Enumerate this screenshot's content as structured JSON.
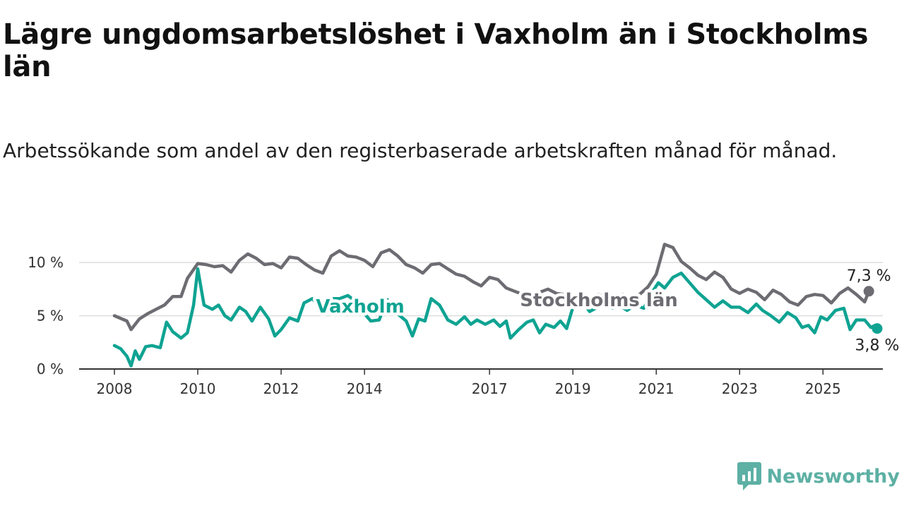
{
  "title": "Lägre ungdomsarbetslöshet i Vaxholm än i Stockholms län",
  "subtitle": "Arbetssökande som andel av den registerbaserade arbetskraften månad för månad.",
  "brand": {
    "name": "Newsworthy"
  },
  "chart_data": {
    "type": "line",
    "y_ticks": [
      0,
      5,
      10
    ],
    "y_tick_labels": [
      "0 %",
      "5 %",
      "10 %"
    ],
    "x_ticks": [
      2008,
      2010,
      2012,
      2014,
      2017,
      2019,
      2021,
      2023,
      2025
    ],
    "x_tick_labels": [
      "2008",
      "2010",
      "2012",
      "2014",
      "2017",
      "2019",
      "2021",
      "2023",
      "2025"
    ],
    "xlim": [
      2008,
      2026.3
    ],
    "ylim": [
      0,
      10
    ],
    "grid": true,
    "colors": {
      "Stockholms län": "#6d6c72",
      "Vaxholm": "#0fa392",
      "grid": "#dddddd",
      "axis": "#333333"
    },
    "series": [
      {
        "name": "Stockholms län",
        "end_label": "7,3 %",
        "points": [
          [
            2008.0,
            5.0
          ],
          [
            2008.3,
            4.5
          ],
          [
            2008.4,
            3.7
          ],
          [
            2008.6,
            4.7
          ],
          [
            2008.8,
            5.2
          ],
          [
            2009.0,
            5.6
          ],
          [
            2009.2,
            6.0
          ],
          [
            2009.4,
            6.8
          ],
          [
            2009.6,
            6.8
          ],
          [
            2009.75,
            8.5
          ],
          [
            2010.0,
            9.9
          ],
          [
            2010.2,
            9.8
          ],
          [
            2010.4,
            9.6
          ],
          [
            2010.6,
            9.7
          ],
          [
            2010.8,
            9.1
          ],
          [
            2011.0,
            10.2
          ],
          [
            2011.2,
            10.8
          ],
          [
            2011.4,
            10.4
          ],
          [
            2011.6,
            9.8
          ],
          [
            2011.8,
            9.9
          ],
          [
            2012.0,
            9.5
          ],
          [
            2012.2,
            10.5
          ],
          [
            2012.4,
            10.4
          ],
          [
            2012.6,
            9.8
          ],
          [
            2012.8,
            9.3
          ],
          [
            2013.0,
            9.0
          ],
          [
            2013.2,
            10.6
          ],
          [
            2013.4,
            11.1
          ],
          [
            2013.6,
            10.6
          ],
          [
            2013.8,
            10.5
          ],
          [
            2014.0,
            10.2
          ],
          [
            2014.2,
            9.6
          ],
          [
            2014.4,
            10.9
          ],
          [
            2014.6,
            11.2
          ],
          [
            2014.8,
            10.6
          ],
          [
            2015.0,
            9.8
          ],
          [
            2015.2,
            9.5
          ],
          [
            2015.4,
            9.0
          ],
          [
            2015.6,
            9.8
          ],
          [
            2015.8,
            9.9
          ],
          [
            2016.0,
            9.4
          ],
          [
            2016.2,
            8.9
          ],
          [
            2016.4,
            8.7
          ],
          [
            2016.6,
            8.2
          ],
          [
            2016.8,
            7.8
          ],
          [
            2017.0,
            8.6
          ],
          [
            2017.2,
            8.4
          ],
          [
            2017.4,
            7.6
          ],
          [
            2017.6,
            7.3
          ],
          [
            2017.8,
            7.0
          ],
          [
            2018.0,
            6.6
          ],
          [
            2018.2,
            7.2
          ],
          [
            2018.4,
            7.5
          ],
          [
            2018.6,
            7.1
          ],
          [
            2018.8,
            7.0
          ],
          [
            2019.0,
            6.6
          ],
          [
            2019.2,
            6.4
          ],
          [
            2019.4,
            6.2
          ],
          [
            2019.6,
            7.0
          ],
          [
            2019.8,
            6.8
          ],
          [
            2020.0,
            5.8
          ],
          [
            2020.2,
            7.0
          ],
          [
            2020.4,
            6.5
          ],
          [
            2020.6,
            7.0
          ],
          [
            2020.8,
            7.7
          ],
          [
            2021.0,
            8.9
          ],
          [
            2021.2,
            11.7
          ],
          [
            2021.4,
            11.4
          ],
          [
            2021.6,
            10.1
          ],
          [
            2021.8,
            9.5
          ],
          [
            2022.0,
            8.8
          ],
          [
            2022.2,
            8.4
          ],
          [
            2022.4,
            9.1
          ],
          [
            2022.6,
            8.6
          ],
          [
            2022.8,
            7.5
          ],
          [
            2023.0,
            7.1
          ],
          [
            2023.2,
            7.5
          ],
          [
            2023.4,
            7.2
          ],
          [
            2023.6,
            6.5
          ],
          [
            2023.8,
            7.4
          ],
          [
            2024.0,
            7.0
          ],
          [
            2024.2,
            6.3
          ],
          [
            2024.4,
            6.0
          ],
          [
            2024.6,
            6.8
          ],
          [
            2024.8,
            7.0
          ],
          [
            2025.0,
            6.9
          ],
          [
            2025.2,
            6.2
          ],
          [
            2025.4,
            7.1
          ],
          [
            2025.6,
            7.6
          ],
          [
            2025.8,
            7.0
          ],
          [
            2026.0,
            6.3
          ],
          [
            2026.1,
            7.3
          ]
        ]
      },
      {
        "name": "Vaxholm",
        "end_label": "3,8 %",
        "points": [
          [
            2008.0,
            2.2
          ],
          [
            2008.15,
            1.9
          ],
          [
            2008.3,
            1.2
          ],
          [
            2008.4,
            0.3
          ],
          [
            2008.5,
            1.7
          ],
          [
            2008.6,
            0.9
          ],
          [
            2008.75,
            2.1
          ],
          [
            2008.9,
            2.2
          ],
          [
            2009.1,
            2.0
          ],
          [
            2009.25,
            4.4
          ],
          [
            2009.4,
            3.5
          ],
          [
            2009.6,
            2.9
          ],
          [
            2009.75,
            3.4
          ],
          [
            2009.9,
            6.0
          ],
          [
            2010.0,
            9.4
          ],
          [
            2010.15,
            6.0
          ],
          [
            2010.35,
            5.6
          ],
          [
            2010.5,
            6.0
          ],
          [
            2010.65,
            5.0
          ],
          [
            2010.8,
            4.6
          ],
          [
            2011.0,
            5.8
          ],
          [
            2011.15,
            5.4
          ],
          [
            2011.3,
            4.5
          ],
          [
            2011.5,
            5.8
          ],
          [
            2011.7,
            4.7
          ],
          [
            2011.85,
            3.1
          ],
          [
            2012.0,
            3.7
          ],
          [
            2012.2,
            4.8
          ],
          [
            2012.4,
            4.5
          ],
          [
            2012.55,
            6.2
          ],
          [
            2012.75,
            6.6
          ],
          [
            2012.9,
            6.0
          ],
          [
            2013.05,
            5.6
          ],
          [
            2013.2,
            6.6
          ],
          [
            2013.4,
            6.6
          ],
          [
            2013.6,
            6.9
          ],
          [
            2013.8,
            6.3
          ],
          [
            2014.0,
            5.2
          ],
          [
            2014.15,
            4.5
          ],
          [
            2014.35,
            4.6
          ],
          [
            2014.55,
            6.5
          ],
          [
            2014.7,
            5.5
          ],
          [
            2014.85,
            5.0
          ],
          [
            2015.0,
            4.5
          ],
          [
            2015.15,
            3.1
          ],
          [
            2015.3,
            4.7
          ],
          [
            2015.45,
            4.5
          ],
          [
            2015.6,
            6.6
          ],
          [
            2015.8,
            6.0
          ],
          [
            2016.0,
            4.6
          ],
          [
            2016.2,
            4.2
          ],
          [
            2016.4,
            4.9
          ],
          [
            2016.55,
            4.2
          ],
          [
            2016.7,
            4.6
          ],
          [
            2016.9,
            4.2
          ],
          [
            2017.1,
            4.6
          ],
          [
            2017.25,
            4.0
          ],
          [
            2017.4,
            4.5
          ],
          [
            2017.5,
            2.9
          ],
          [
            2017.7,
            3.7
          ],
          [
            2017.9,
            4.4
          ],
          [
            2018.05,
            4.6
          ],
          [
            2018.2,
            3.4
          ],
          [
            2018.35,
            4.2
          ],
          [
            2018.55,
            3.9
          ],
          [
            2018.7,
            4.5
          ],
          [
            2018.85,
            3.8
          ],
          [
            2019.0,
            5.8
          ],
          [
            2019.2,
            6.5
          ],
          [
            2019.4,
            5.4
          ],
          [
            2019.6,
            5.8
          ],
          [
            2019.8,
            6.9
          ],
          [
            2019.95,
            5.7
          ],
          [
            2020.1,
            6.0
          ],
          [
            2020.3,
            5.5
          ],
          [
            2020.5,
            6.0
          ],
          [
            2020.7,
            5.7
          ],
          [
            2020.9,
            7.2
          ],
          [
            2021.05,
            8.1
          ],
          [
            2021.2,
            7.6
          ],
          [
            2021.4,
            8.6
          ],
          [
            2021.6,
            9.0
          ],
          [
            2021.8,
            8.1
          ],
          [
            2022.0,
            7.2
          ],
          [
            2022.2,
            6.5
          ],
          [
            2022.4,
            5.8
          ],
          [
            2022.6,
            6.4
          ],
          [
            2022.8,
            5.8
          ],
          [
            2023.0,
            5.8
          ],
          [
            2023.2,
            5.3
          ],
          [
            2023.4,
            6.1
          ],
          [
            2023.55,
            5.5
          ],
          [
            2023.75,
            5.0
          ],
          [
            2023.95,
            4.4
          ],
          [
            2024.15,
            5.3
          ],
          [
            2024.35,
            4.8
          ],
          [
            2024.5,
            3.9
          ],
          [
            2024.65,
            4.1
          ],
          [
            2024.8,
            3.4
          ],
          [
            2024.95,
            4.9
          ],
          [
            2025.1,
            4.6
          ],
          [
            2025.3,
            5.5
          ],
          [
            2025.5,
            5.7
          ],
          [
            2025.65,
            3.7
          ],
          [
            2025.8,
            4.6
          ],
          [
            2026.0,
            4.6
          ],
          [
            2026.15,
            3.9
          ],
          [
            2026.25,
            4.1
          ],
          [
            2026.3,
            3.8
          ]
        ]
      }
    ]
  }
}
